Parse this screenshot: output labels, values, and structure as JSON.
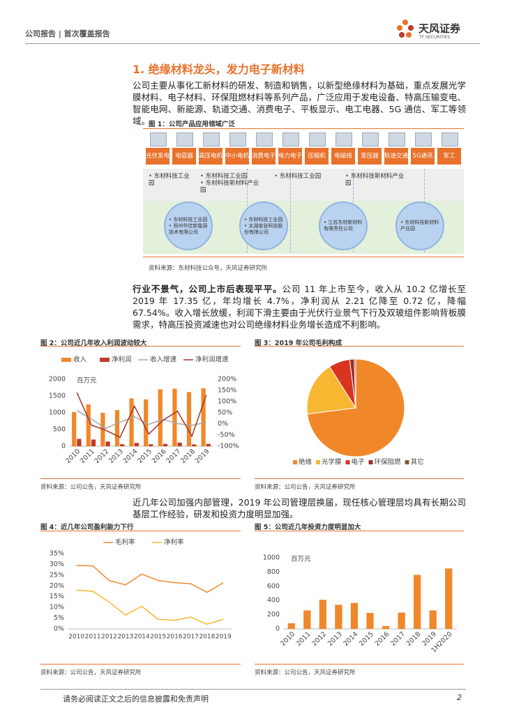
{
  "header": {
    "left": "公司报告 | 首次覆盖报告",
    "logo": "天风证券",
    "logo_en": "TF SECURITIES"
  },
  "section_title": "1. 绝缘材料龙头，发力电子新材料",
  "paragraphs": [
    {
      "text": "公司主要从事化工新材料的研发、制造和销售，以新型绝缘材料为基础，重点发展光学膜材料、电子材料、环保阻燃材料等系列产品，广泛应用于发电设备、特高压输变电、智能电网、新能源、轨道交通、消费电子、平板显示、电工电器、5G 通信、军工等领域。"
    },
    {
      "lead": "行业不景气，公司上市后表现平平。",
      "text": "公司 11 年上市至今，收入从 10.2 亿增长至 2019 年 17.35 亿，年均增长 4.7%，净利润从 2.21 亿降至 0.72 亿，降幅 67.54%。收入增长放缓，利润下滑主要由于光伏行业景气下行及双玻组件影响背板膜需求，特高压投资减速也对公司绝缘材料业务增长造成不利影响。"
    },
    {
      "text": "近几年公司加强内部管理，2019 年公司管理层换届，现任核心管理层均具有长期公司基层工作经验，研发和投资力度明显加强。"
    }
  ],
  "figure1": {
    "title": "图 1：公司产品应用领域广泛",
    "applications": [
      "光伏发电",
      "电容器",
      "高压电机",
      "中小电机",
      "消费电子",
      "电力电子",
      "压缩机",
      "电磁线",
      "变压器",
      "轨道交通",
      "5G通讯",
      "军工"
    ],
    "parks": [
      [
        "东材科技工业园"
      ],
      [
        "东材科技工业园",
        "东材科技新材料产业园"
      ],
      [
        "东材科技工业园"
      ],
      [
        "东材科技新材料产业园"
      ]
    ],
    "companies": [
      [
        "东材科技工业园",
        "郑州华佳新能源技术有限公司"
      ],
      [
        "东材科技工业园",
        "太湖金张科技股份有限公司"
      ],
      [
        "江苏东材新材料有限责任公司"
      ],
      [
        "东材科技新材料产业园"
      ]
    ],
    "source": "资料来源：东材科技公众号，天风证券研究所"
  },
  "chart_data": [
    {
      "type": "bar",
      "title": "图 2：公司近几年收入利润波动较大",
      "unit": "百万元",
      "categories": [
        "2010",
        "2011",
        "2012",
        "2013",
        "2014",
        "2015",
        "2016",
        "2017",
        "2018",
        "2019"
      ],
      "series": [
        {
          "name": "收入",
          "color": "#f0882a",
          "values": [
            1020,
            1250,
            1000,
            1080,
            1430,
            1400,
            1700,
            1720,
            1620,
            1735
          ]
        },
        {
          "name": "净利润",
          "color": "#c0392b",
          "values": [
            221,
            200,
            140,
            60,
            100,
            60,
            70,
            110,
            55,
            72
          ]
        },
        {
          "name": "收入增速",
          "type": "line",
          "axis": "y2",
          "color": "#a6a6a6",
          "values": [
            60,
            22,
            -20,
            8,
            32,
            -2,
            21,
            1,
            -6,
            7
          ]
        },
        {
          "name": "净利润增速",
          "type": "line",
          "axis": "y2",
          "color": "#a5322a",
          "values": [
            140,
            -5,
            -28,
            -60,
            80,
            -45,
            17,
            57,
            -55,
            130
          ]
        }
      ],
      "ylim": [
        0,
        2000
      ],
      "yticks": [
        0,
        500,
        1000,
        1500,
        2000
      ],
      "y2lim": [
        -100,
        200
      ],
      "y2ticks": [
        {
          "value": -100,
          "label": "-100%"
        },
        {
          "value": -50,
          "label": "-50%"
        },
        {
          "value": 0,
          "label": "0%"
        },
        {
          "value": 50,
          "label": "50%"
        },
        {
          "value": 100,
          "label": "100%"
        },
        {
          "value": 150,
          "label": "150%"
        },
        {
          "value": 200,
          "label": "200%"
        }
      ],
      "grid": false,
      "legend": "top",
      "source": "资料来源：公司公告，天风证券研究所"
    },
    {
      "type": "pie",
      "title": "图 3：2019 年公司毛利构成",
      "categories": [
        "绝缘",
        "光学膜",
        "电子",
        "环保阻燃",
        "其它"
      ],
      "values": [
        73,
        18,
        7,
        1.5,
        0.5
      ],
      "colors": [
        "#f0882a",
        "#f7b731",
        "#d9341f",
        "#a52a2a",
        "#8b5a2b"
      ],
      "legend": "bottom",
      "source": "资料来源：公司公告，天风证券研究所"
    },
    {
      "type": "line",
      "title": "图 4：近几年公司盈利能力下行",
      "categories": [
        "2010",
        "2011",
        "2012",
        "2013",
        "2014",
        "2015",
        "2016",
        "2017",
        "2018",
        "2019"
      ],
      "series": [
        {
          "name": "毛利率",
          "color": "#f0882a",
          "values": [
            29.5,
            29.3,
            22.5,
            20.5,
            25.5,
            22.5,
            21.5,
            21,
            17,
            21.5
          ]
        },
        {
          "name": "净利率",
          "color": "#f7b731",
          "values": [
            18,
            17.5,
            12.5,
            6.5,
            10.5,
            4.5,
            4,
            5.5,
            2.2,
            4.5
          ]
        }
      ],
      "ylim": [
        0,
        35
      ],
      "yticks": [
        {
          "value": 0,
          "label": "0%"
        },
        {
          "value": 5,
          "label": "5%"
        },
        {
          "value": 10,
          "label": "10%"
        },
        {
          "value": 15,
          "label": "15%"
        },
        {
          "value": 20,
          "label": "20%"
        },
        {
          "value": 25,
          "label": "25%"
        },
        {
          "value": 30,
          "label": "30%"
        },
        {
          "value": 35,
          "label": "35%"
        }
      ],
      "grid": false,
      "legend": "top",
      "source": "资料来源：公司公告，天风证券研究所"
    },
    {
      "type": "bar",
      "title": "图 5：公司近几年投资力度明显加大",
      "unit": "百万元",
      "categories": [
        "2010",
        "2011",
        "2012",
        "2013",
        "2014",
        "2015",
        "2016",
        "2017",
        "2018",
        "2019",
        "1H2020"
      ],
      "series": [
        {
          "color": "#f0882a",
          "values": [
            80,
            260,
            410,
            340,
            365,
            225,
            40,
            230,
            760,
            260,
            850
          ]
        }
      ],
      "ylim": [
        0,
        1000
      ],
      "yticks": [
        0,
        200,
        400,
        600,
        800,
        1000
      ],
      "grid": false,
      "source": "资料来源：公司公告，天风证券研究所"
    }
  ],
  "footer": {
    "disclaimer": "请务必阅读正文之后的信息披露和免责声明",
    "page": "2"
  }
}
